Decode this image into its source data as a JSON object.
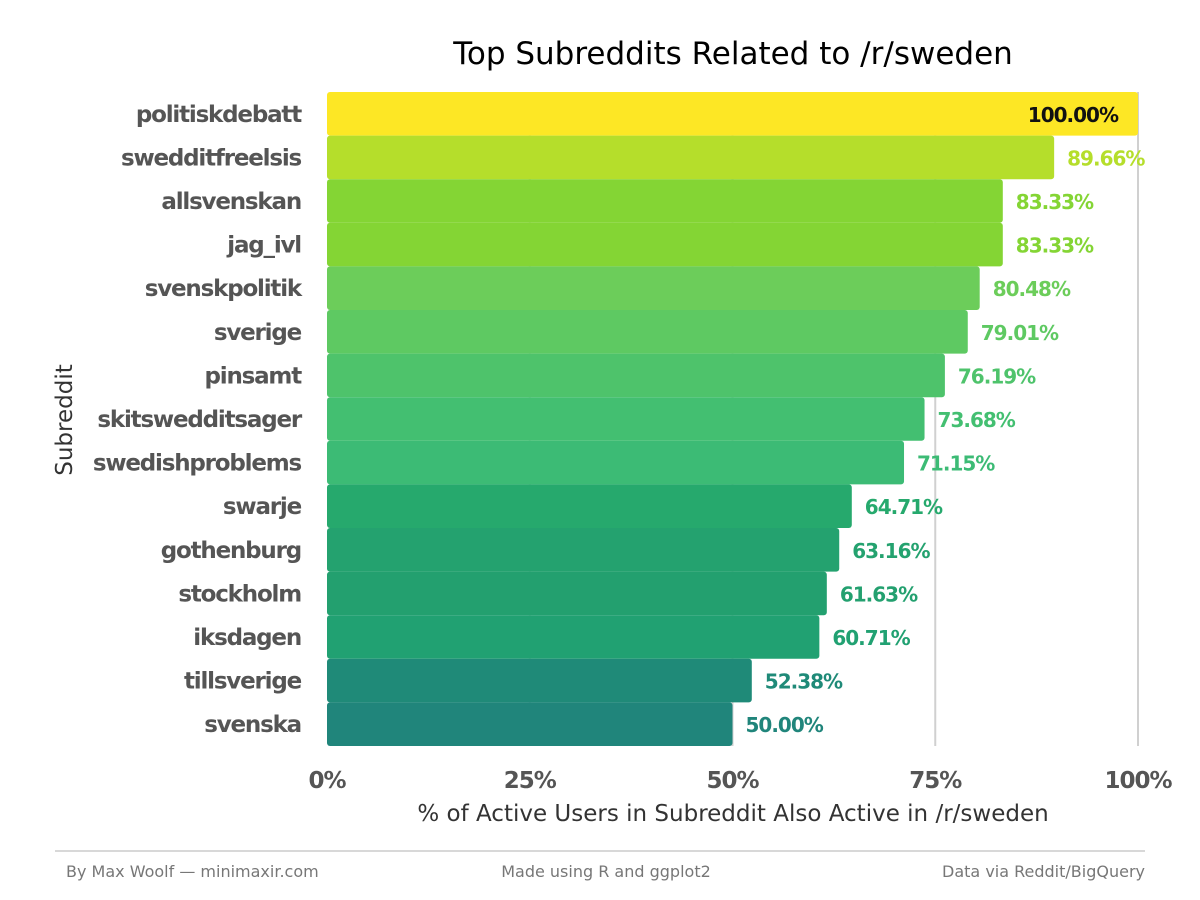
{
  "chart_data": {
    "type": "bar",
    "orientation": "horizontal",
    "title": "Top Subreddits Related to /r/sweden",
    "xlabel": "% of Active Users in Subreddit Also Active in /r/sweden",
    "ylabel": "Subreddit",
    "xlim": [
      0,
      100
    ],
    "x_ticks": [
      0,
      25,
      50,
      75,
      100
    ],
    "x_tick_labels": [
      "0%",
      "25%",
      "50%",
      "75%",
      "100%"
    ],
    "grid": true,
    "categories": [
      "politiskdebatt",
      "swedditfreelsis",
      "allsvenskan",
      "jag_ivl",
      "svenskpolitik",
      "sverige",
      "pinsamt",
      "skitswedditsager",
      "swedishproblems",
      "swarje",
      "gothenburg",
      "stockholm",
      "iksdagen",
      "tillsverige",
      "svenska"
    ],
    "values": [
      100.0,
      89.66,
      83.33,
      83.33,
      80.48,
      79.01,
      76.19,
      73.68,
      71.15,
      64.71,
      63.16,
      61.63,
      60.71,
      52.38,
      50.0
    ],
    "value_labels": [
      "100.00%",
      "89.66%",
      "83.33%",
      "83.33%",
      "80.48%",
      "79.01%",
      "76.19%",
      "73.68%",
      "71.15%",
      "64.71%",
      "63.16%",
      "61.63%",
      "60.71%",
      "52.38%",
      "50.00%"
    ],
    "colors": [
      "#fde725",
      "#b5de2b",
      "#84d534",
      "#84d534",
      "#6ccd5a",
      "#5ec962",
      "#4ec36b",
      "#43bf71",
      "#3cbb75",
      "#26a96d",
      "#24a26f",
      "#23a06f",
      "#21a172",
      "#1f8a78",
      "#20857b"
    ],
    "footer": {
      "left": "By Max Woolf — minimaxir.com",
      "center": "Made using R and ggplot2",
      "right": "Data via Reddit/BigQuery"
    }
  }
}
